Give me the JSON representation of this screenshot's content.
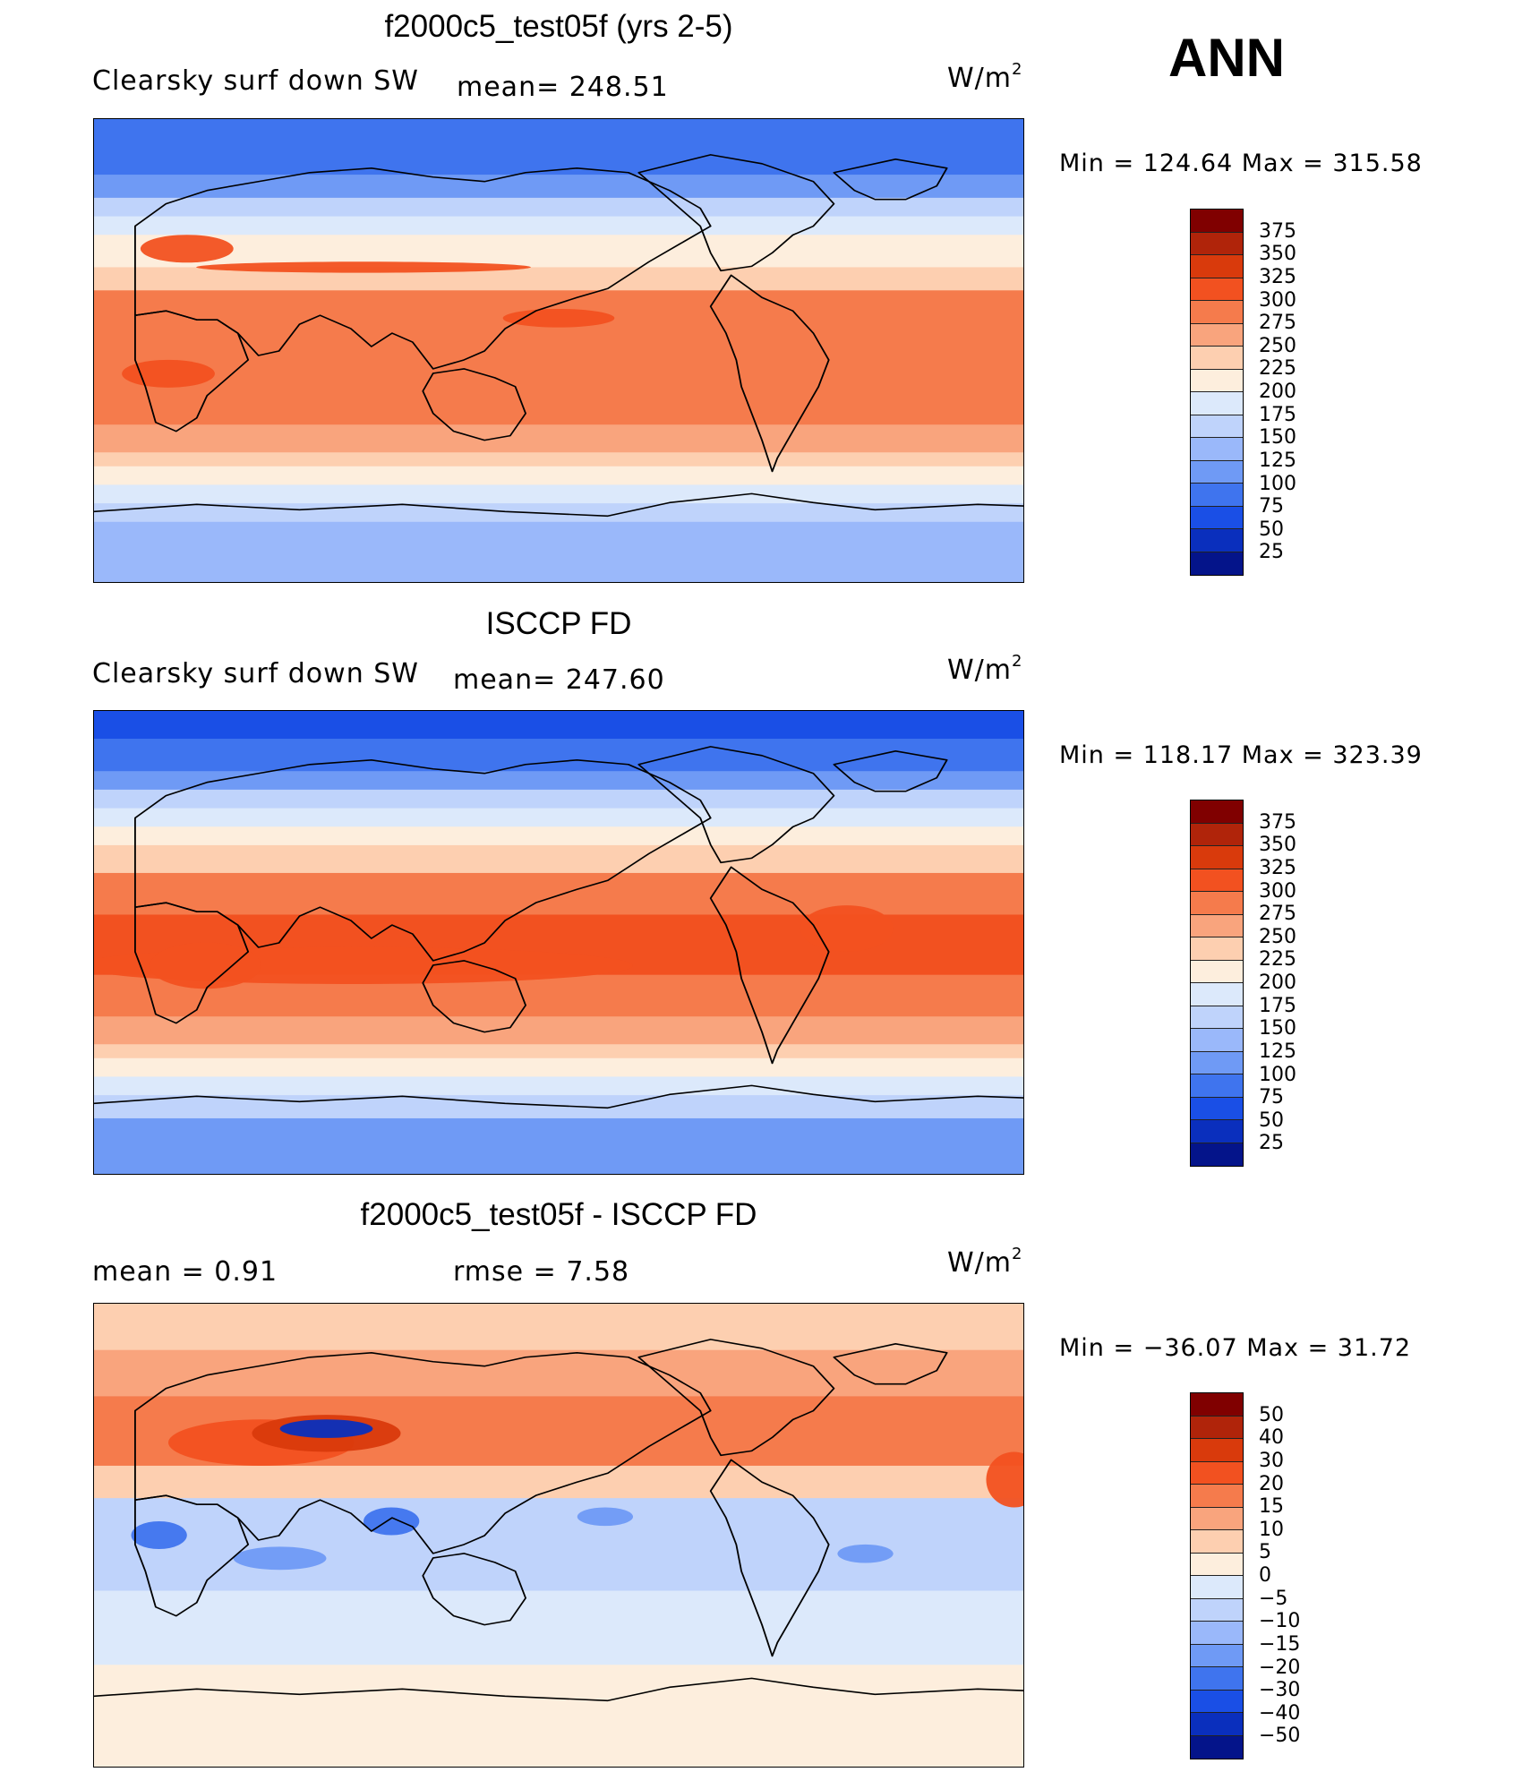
{
  "season": "ANN",
  "units": "W/m",
  "units_sup": "2",
  "panels": [
    {
      "title": "f2000c5_test05f (yrs 2-5)",
      "variable": "Clearsky surf down SW",
      "stat1": "mean=  248.51",
      "stat2": "",
      "minmax": "Min  =  124.64  Max  =  315.58",
      "legend_levels": [
        "375",
        "350",
        "325",
        "300",
        "275",
        "250",
        "225",
        "200",
        "175",
        "150",
        "125",
        "100",
        "75",
        "50",
        "25"
      ],
      "legend_colors": [
        "#800000",
        "#b0240a",
        "#d93a0c",
        "#f25120",
        "#f57b4c",
        "#f9a47d",
        "#fdcfb0",
        "#fdeedd",
        "#dce9fb",
        "#bfd3fb",
        "#9ab8fa",
        "#6f9af5",
        "#3f74ee",
        "#1a4fe6",
        "#0a2fbd",
        "#04148a"
      ],
      "field": "model"
    },
    {
      "title": "ISCCP FD",
      "variable": "Clearsky surf down SW",
      "stat1": "mean=  247.60",
      "stat2": "",
      "minmax": "Min  =  118.17  Max  =  323.39",
      "legend_levels": [
        "375",
        "350",
        "325",
        "300",
        "275",
        "250",
        "225",
        "200",
        "175",
        "150",
        "125",
        "100",
        "75",
        "50",
        "25"
      ],
      "legend_colors": [
        "#800000",
        "#b0240a",
        "#d93a0c",
        "#f25120",
        "#f57b4c",
        "#f9a47d",
        "#fdcfb0",
        "#fdeedd",
        "#dce9fb",
        "#bfd3fb",
        "#9ab8fa",
        "#6f9af5",
        "#3f74ee",
        "#1a4fe6",
        "#0a2fbd",
        "#04148a"
      ],
      "field": "obs"
    },
    {
      "title": "f2000c5_test05f - ISCCP FD",
      "variable": "mean  =      0.91",
      "stat1": "rmse  =      7.58",
      "stat2": "",
      "minmax": "Min  =  −36.07  Max  =     31.72",
      "legend_levels": [
        "50",
        "40",
        "30",
        "20",
        "15",
        "10",
        "5",
        "0",
        "−5",
        "−10",
        "−15",
        "−20",
        "−30",
        "−40",
        "−50"
      ],
      "legend_colors": [
        "#800000",
        "#b0240a",
        "#d93a0c",
        "#f25120",
        "#f57b4c",
        "#f9a47d",
        "#fdcfb0",
        "#fdeedd",
        "#dce9fb",
        "#bfd3fb",
        "#9ab8fa",
        "#6f9af5",
        "#3f74ee",
        "#1a4fe6",
        "#0a2fbd",
        "#04148a"
      ],
      "field": "diff"
    }
  ]
}
